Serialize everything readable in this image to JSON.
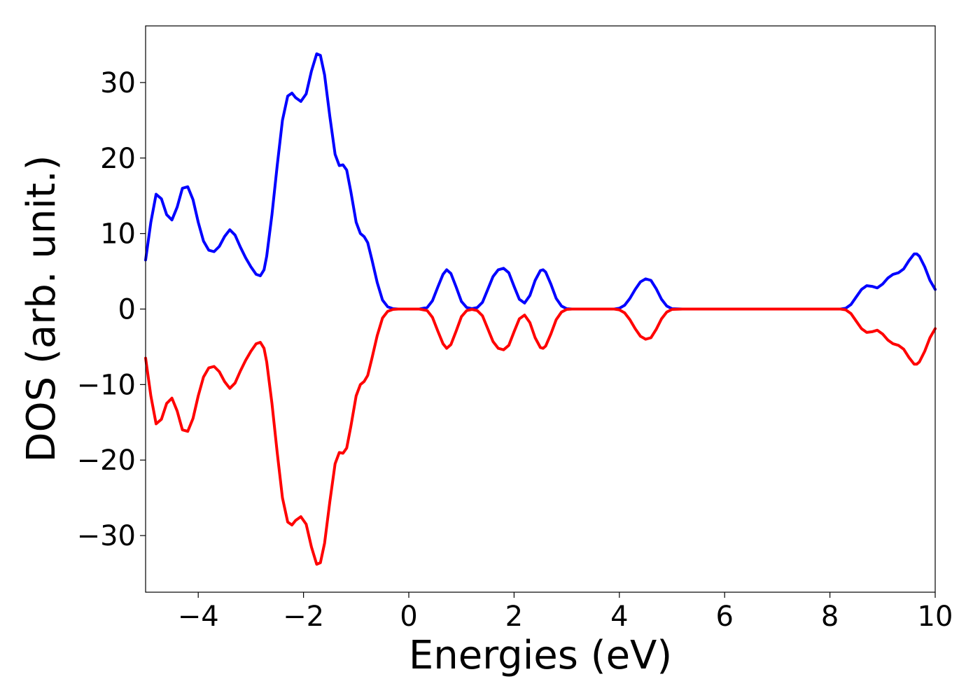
{
  "chart_data": {
    "type": "line",
    "title": "",
    "xlabel": "Energies (eV)",
    "ylabel": "DOS (arb. unit.)",
    "xlim": [
      -5,
      10
    ],
    "ylim": [
      -37.5,
      37.5
    ],
    "grid": false,
    "legend": "none",
    "x_ticks": [
      -4,
      -2,
      0,
      2,
      4,
      6,
      8,
      10
    ],
    "x_tick_labels": [
      "−4",
      "−2",
      "0",
      "2",
      "4",
      "6",
      "8",
      "10"
    ],
    "y_ticks": [
      -30,
      -20,
      -10,
      0,
      10,
      20,
      30
    ],
    "y_tick_labels": [
      "−30",
      "−20",
      "−10",
      "0",
      "10",
      "20",
      "30"
    ],
    "series": [
      {
        "color": "#0000ff",
        "points": [
          [
            -5.0,
            6.5
          ],
          [
            -4.9,
            11.5
          ],
          [
            -4.8,
            15.2
          ],
          [
            -4.7,
            14.6
          ],
          [
            -4.6,
            12.5
          ],
          [
            -4.5,
            11.8
          ],
          [
            -4.4,
            13.5
          ],
          [
            -4.3,
            16.0
          ],
          [
            -4.2,
            16.2
          ],
          [
            -4.1,
            14.5
          ],
          [
            -4.0,
            11.5
          ],
          [
            -3.9,
            9.0
          ],
          [
            -3.8,
            7.8
          ],
          [
            -3.7,
            7.6
          ],
          [
            -3.6,
            8.3
          ],
          [
            -3.5,
            9.6
          ],
          [
            -3.4,
            10.5
          ],
          [
            -3.3,
            9.8
          ],
          [
            -3.2,
            8.2
          ],
          [
            -3.1,
            6.8
          ],
          [
            -3.0,
            5.6
          ],
          [
            -2.9,
            4.6
          ],
          [
            -2.82,
            4.4
          ],
          [
            -2.75,
            5.2
          ],
          [
            -2.7,
            7.0
          ],
          [
            -2.6,
            12.5
          ],
          [
            -2.5,
            19.0
          ],
          [
            -2.4,
            25.0
          ],
          [
            -2.3,
            28.2
          ],
          [
            -2.22,
            28.6
          ],
          [
            -2.15,
            28.0
          ],
          [
            -2.05,
            27.5
          ],
          [
            -1.95,
            28.5
          ],
          [
            -1.85,
            31.5
          ],
          [
            -1.75,
            33.8
          ],
          [
            -1.68,
            33.6
          ],
          [
            -1.6,
            31.0
          ],
          [
            -1.5,
            25.5
          ],
          [
            -1.4,
            20.5
          ],
          [
            -1.32,
            19.0
          ],
          [
            -1.25,
            19.1
          ],
          [
            -1.18,
            18.4
          ],
          [
            -1.1,
            15.5
          ],
          [
            -1.0,
            11.5
          ],
          [
            -0.92,
            10.0
          ],
          [
            -0.85,
            9.6
          ],
          [
            -0.78,
            8.8
          ],
          [
            -0.7,
            6.5
          ],
          [
            -0.6,
            3.5
          ],
          [
            -0.5,
            1.2
          ],
          [
            -0.4,
            0.3
          ],
          [
            -0.3,
            0.05
          ],
          [
            -0.2,
            0.0
          ],
          [
            0.0,
            0.0
          ],
          [
            0.2,
            0.0
          ],
          [
            0.35,
            0.2
          ],
          [
            0.45,
            1.1
          ],
          [
            0.55,
            2.9
          ],
          [
            0.65,
            4.6
          ],
          [
            0.72,
            5.2
          ],
          [
            0.8,
            4.7
          ],
          [
            0.9,
            2.9
          ],
          [
            1.0,
            1.0
          ],
          [
            1.1,
            0.2
          ],
          [
            1.2,
            0.05
          ],
          [
            1.3,
            0.2
          ],
          [
            1.4,
            0.9
          ],
          [
            1.5,
            2.6
          ],
          [
            1.6,
            4.3
          ],
          [
            1.7,
            5.2
          ],
          [
            1.8,
            5.4
          ],
          [
            1.9,
            4.8
          ],
          [
            2.0,
            3.0
          ],
          [
            2.1,
            1.3
          ],
          [
            2.2,
            0.8
          ],
          [
            2.3,
            1.8
          ],
          [
            2.4,
            3.8
          ],
          [
            2.5,
            5.1
          ],
          [
            2.55,
            5.2
          ],
          [
            2.6,
            4.9
          ],
          [
            2.7,
            3.3
          ],
          [
            2.8,
            1.4
          ],
          [
            2.9,
            0.4
          ],
          [
            3.0,
            0.05
          ],
          [
            3.1,
            0.0
          ],
          [
            3.9,
            0.0
          ],
          [
            4.0,
            0.1
          ],
          [
            4.1,
            0.5
          ],
          [
            4.2,
            1.4
          ],
          [
            4.3,
            2.6
          ],
          [
            4.4,
            3.6
          ],
          [
            4.5,
            4.0
          ],
          [
            4.6,
            3.8
          ],
          [
            4.7,
            2.7
          ],
          [
            4.8,
            1.3
          ],
          [
            4.9,
            0.4
          ],
          [
            5.0,
            0.05
          ],
          [
            5.2,
            0.0
          ],
          [
            8.2,
            0.0
          ],
          [
            8.3,
            0.1
          ],
          [
            8.4,
            0.6
          ],
          [
            8.5,
            1.6
          ],
          [
            8.6,
            2.6
          ],
          [
            8.7,
            3.1
          ],
          [
            8.8,
            3.0
          ],
          [
            8.9,
            2.8
          ],
          [
            9.0,
            3.3
          ],
          [
            9.1,
            4.1
          ],
          [
            9.2,
            4.6
          ],
          [
            9.3,
            4.8
          ],
          [
            9.4,
            5.3
          ],
          [
            9.5,
            6.4
          ],
          [
            9.6,
            7.3
          ],
          [
            9.65,
            7.3
          ],
          [
            9.7,
            7.0
          ],
          [
            9.8,
            5.6
          ],
          [
            9.9,
            3.8
          ],
          [
            10.0,
            2.6
          ]
        ]
      },
      {
        "color": "#ff0000",
        "points": [
          [
            -5.0,
            -6.5
          ],
          [
            -4.9,
            -11.5
          ],
          [
            -4.8,
            -15.2
          ],
          [
            -4.7,
            -14.6
          ],
          [
            -4.6,
            -12.5
          ],
          [
            -4.5,
            -11.8
          ],
          [
            -4.4,
            -13.5
          ],
          [
            -4.3,
            -16.0
          ],
          [
            -4.2,
            -16.2
          ],
          [
            -4.1,
            -14.5
          ],
          [
            -4.0,
            -11.5
          ],
          [
            -3.9,
            -9.0
          ],
          [
            -3.8,
            -7.8
          ],
          [
            -3.7,
            -7.6
          ],
          [
            -3.6,
            -8.3
          ],
          [
            -3.5,
            -9.6
          ],
          [
            -3.4,
            -10.5
          ],
          [
            -3.3,
            -9.8
          ],
          [
            -3.2,
            -8.2
          ],
          [
            -3.1,
            -6.8
          ],
          [
            -3.0,
            -5.6
          ],
          [
            -2.9,
            -4.6
          ],
          [
            -2.82,
            -4.4
          ],
          [
            -2.75,
            -5.2
          ],
          [
            -2.7,
            -7.0
          ],
          [
            -2.6,
            -12.5
          ],
          [
            -2.5,
            -19.0
          ],
          [
            -2.4,
            -25.0
          ],
          [
            -2.3,
            -28.2
          ],
          [
            -2.22,
            -28.6
          ],
          [
            -2.15,
            -28.0
          ],
          [
            -2.05,
            -27.5
          ],
          [
            -1.95,
            -28.5
          ],
          [
            -1.85,
            -31.5
          ],
          [
            -1.75,
            -33.8
          ],
          [
            -1.68,
            -33.6
          ],
          [
            -1.6,
            -31.0
          ],
          [
            -1.5,
            -25.5
          ],
          [
            -1.4,
            -20.5
          ],
          [
            -1.32,
            -19.0
          ],
          [
            -1.25,
            -19.1
          ],
          [
            -1.18,
            -18.4
          ],
          [
            -1.1,
            -15.5
          ],
          [
            -1.0,
            -11.5
          ],
          [
            -0.92,
            -10.0
          ],
          [
            -0.85,
            -9.6
          ],
          [
            -0.78,
            -8.8
          ],
          [
            -0.7,
            -6.5
          ],
          [
            -0.6,
            -3.5
          ],
          [
            -0.5,
            -1.2
          ],
          [
            -0.4,
            -0.3
          ],
          [
            -0.3,
            -0.05
          ],
          [
            -0.2,
            0.0
          ],
          [
            0.0,
            0.0
          ],
          [
            0.2,
            0.0
          ],
          [
            0.35,
            -0.2
          ],
          [
            0.45,
            -1.1
          ],
          [
            0.55,
            -2.9
          ],
          [
            0.65,
            -4.6
          ],
          [
            0.72,
            -5.2
          ],
          [
            0.8,
            -4.7
          ],
          [
            0.9,
            -2.9
          ],
          [
            1.0,
            -1.0
          ],
          [
            1.1,
            -0.2
          ],
          [
            1.2,
            -0.05
          ],
          [
            1.3,
            -0.2
          ],
          [
            1.4,
            -0.9
          ],
          [
            1.5,
            -2.6
          ],
          [
            1.6,
            -4.3
          ],
          [
            1.7,
            -5.2
          ],
          [
            1.8,
            -5.4
          ],
          [
            1.9,
            -4.8
          ],
          [
            2.0,
            -3.0
          ],
          [
            2.1,
            -1.3
          ],
          [
            2.2,
            -0.8
          ],
          [
            2.3,
            -1.8
          ],
          [
            2.4,
            -3.8
          ],
          [
            2.5,
            -5.1
          ],
          [
            2.55,
            -5.2
          ],
          [
            2.6,
            -4.9
          ],
          [
            2.7,
            -3.3
          ],
          [
            2.8,
            -1.4
          ],
          [
            2.9,
            -0.4
          ],
          [
            3.0,
            -0.05
          ],
          [
            3.1,
            0.0
          ],
          [
            3.9,
            0.0
          ],
          [
            4.0,
            -0.1
          ],
          [
            4.1,
            -0.5
          ],
          [
            4.2,
            -1.4
          ],
          [
            4.3,
            -2.6
          ],
          [
            4.4,
            -3.6
          ],
          [
            4.5,
            -4.0
          ],
          [
            4.6,
            -3.8
          ],
          [
            4.7,
            -2.7
          ],
          [
            4.8,
            -1.3
          ],
          [
            4.9,
            -0.4
          ],
          [
            5.0,
            -0.05
          ],
          [
            5.2,
            0.0
          ],
          [
            8.2,
            0.0
          ],
          [
            8.3,
            -0.1
          ],
          [
            8.4,
            -0.6
          ],
          [
            8.5,
            -1.6
          ],
          [
            8.6,
            -2.6
          ],
          [
            8.7,
            -3.1
          ],
          [
            8.8,
            -3.0
          ],
          [
            8.9,
            -2.8
          ],
          [
            9.0,
            -3.3
          ],
          [
            9.1,
            -4.1
          ],
          [
            9.2,
            -4.6
          ],
          [
            9.3,
            -4.8
          ],
          [
            9.4,
            -5.3
          ],
          [
            9.5,
            -6.4
          ],
          [
            9.6,
            -7.3
          ],
          [
            9.65,
            -7.3
          ],
          [
            9.7,
            -7.0
          ],
          [
            9.8,
            -5.6
          ],
          [
            9.9,
            -3.8
          ],
          [
            10.0,
            -2.6
          ]
        ]
      }
    ]
  }
}
